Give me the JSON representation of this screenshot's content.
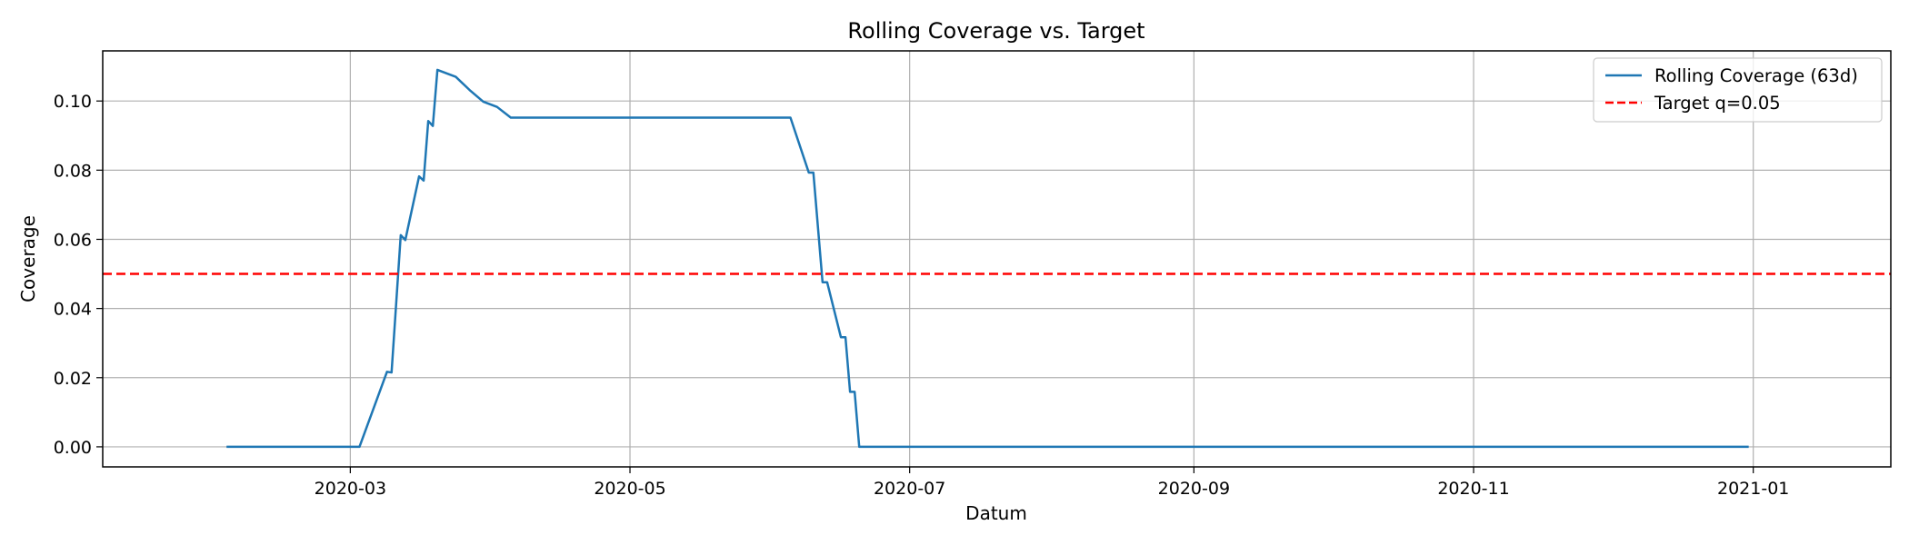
{
  "chart_data": {
    "type": "line",
    "title": "Rolling Coverage vs. Target",
    "xlabel": "Datum",
    "ylabel": "Coverage",
    "x_axis": {
      "kind": "date",
      "range": [
        "2020-01-07",
        "2021-01-31"
      ],
      "ticks": [
        "2020-03-01",
        "2020-05-01",
        "2020-07-01",
        "2020-09-01",
        "2020-11-01",
        "2021-01-01"
      ],
      "tick_labels": [
        "2020-03",
        "2020-05",
        "2020-07",
        "2020-09",
        "2020-11",
        "2021-01"
      ]
    },
    "y_axis": {
      "range": [
        -0.0058,
        0.1145
      ],
      "ticks": [
        0.0,
        0.02,
        0.04,
        0.06,
        0.08,
        0.1
      ],
      "tick_labels": [
        "0.00",
        "0.02",
        "0.04",
        "0.06",
        "0.08",
        "0.10"
      ]
    },
    "grid": true,
    "legend": {
      "placement": "top-right"
    },
    "series": [
      {
        "name": "Rolling Coverage (63d)",
        "color": "#1f77b4",
        "style": "solid",
        "points": [
          [
            "2020-02-03",
            0.0
          ],
          [
            "2020-03-02",
            0.0
          ],
          [
            "2020-03-03",
            0.0
          ],
          [
            "2020-03-09",
            0.0217
          ],
          [
            "2020-03-10",
            0.0215
          ],
          [
            "2020-03-12",
            0.0612
          ],
          [
            "2020-03-13",
            0.0598
          ],
          [
            "2020-03-16",
            0.0782
          ],
          [
            "2020-03-17",
            0.077
          ],
          [
            "2020-03-18",
            0.0942
          ],
          [
            "2020-03-19",
            0.0928
          ],
          [
            "2020-03-20",
            0.109
          ],
          [
            "2020-03-24",
            0.107
          ],
          [
            "2020-03-27",
            0.1032
          ],
          [
            "2020-03-30",
            0.0998
          ],
          [
            "2020-04-02",
            0.0983
          ],
          [
            "2020-04-05",
            0.0952
          ],
          [
            "2020-05-01",
            0.0952
          ],
          [
            "2020-06-05",
            0.0952
          ],
          [
            "2020-06-09",
            0.0793
          ],
          [
            "2020-06-10",
            0.0793
          ],
          [
            "2020-06-12",
            0.0476
          ],
          [
            "2020-06-13",
            0.0476
          ],
          [
            "2020-06-16",
            0.0317
          ],
          [
            "2020-06-17",
            0.0317
          ],
          [
            "2020-06-18",
            0.0159
          ],
          [
            "2020-06-19",
            0.0159
          ],
          [
            "2020-06-20",
            0.0
          ],
          [
            "2020-09-01",
            0.0
          ],
          [
            "2020-12-31",
            0.0
          ]
        ]
      },
      {
        "name": "Target q=0.05",
        "color": "#ff0000",
        "style": "dashed",
        "hline": 0.05
      }
    ]
  }
}
